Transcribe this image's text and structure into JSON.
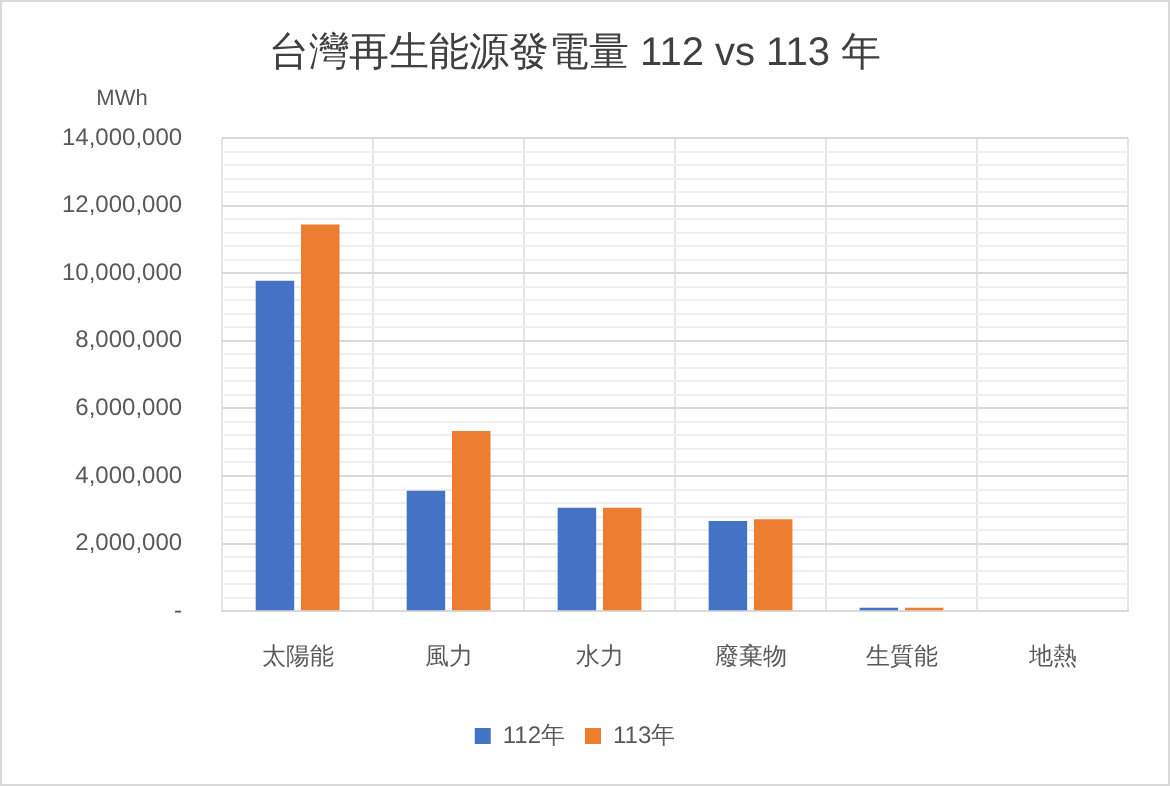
{
  "chart_data": {
    "type": "bar",
    "title": "台灣再生能源發電量 112 vs 113 年",
    "ylabel": "MWh",
    "categories": [
      "太陽能",
      "風力",
      "水力",
      "廢棄物",
      "生質能",
      "地熱"
    ],
    "series": [
      {
        "name": "112年",
        "color": "#4472c4",
        "values": [
          9780000,
          3560000,
          3060000,
          2670000,
          100000,
          0
        ]
      },
      {
        "name": "113年",
        "color": "#ed7d31",
        "values": [
          11440000,
          5330000,
          3060000,
          2720000,
          100000,
          0
        ]
      }
    ],
    "ylim": [
      0,
      14000000
    ],
    "yticks": [
      {
        "value": 0,
        "label": "-"
      },
      {
        "value": 400000,
        "label": null
      },
      {
        "value": 800000,
        "label": null
      },
      {
        "value": 1200000,
        "label": null
      },
      {
        "value": 1600000,
        "label": null
      },
      {
        "value": 2000000,
        "label": "2,000,000"
      },
      {
        "value": 2400000,
        "label": null
      },
      {
        "value": 2800000,
        "label": null
      },
      {
        "value": 3200000,
        "label": null
      },
      {
        "value": 3600000,
        "label": null
      },
      {
        "value": 4000000,
        "label": "4,000,000"
      },
      {
        "value": 4400000,
        "label": null
      },
      {
        "value": 4800000,
        "label": null
      },
      {
        "value": 5200000,
        "label": null
      },
      {
        "value": 5600000,
        "label": null
      },
      {
        "value": 6000000,
        "label": "6,000,000"
      },
      {
        "value": 6400000,
        "label": null
      },
      {
        "value": 6800000,
        "label": null
      },
      {
        "value": 7200000,
        "label": null
      },
      {
        "value": 7600000,
        "label": null
      },
      {
        "value": 8000000,
        "label": "8,000,000"
      },
      {
        "value": 8400000,
        "label": null
      },
      {
        "value": 8800000,
        "label": null
      },
      {
        "value": 9200000,
        "label": null
      },
      {
        "value": 9600000,
        "label": null
      },
      {
        "value": 10000000,
        "label": "10,000,000"
      },
      {
        "value": 10400000,
        "label": null
      },
      {
        "value": 10800000,
        "label": null
      },
      {
        "value": 11200000,
        "label": null
      },
      {
        "value": 11600000,
        "label": null
      },
      {
        "value": 12000000,
        "label": "12,000,000"
      },
      {
        "value": 12400000,
        "label": null
      },
      {
        "value": 12800000,
        "label": null
      },
      {
        "value": 13200000,
        "label": null
      },
      {
        "value": 13600000,
        "label": null
      },
      {
        "value": 14000000,
        "label": "14,000,000"
      }
    ],
    "grid": true,
    "legend": "bottom"
  }
}
